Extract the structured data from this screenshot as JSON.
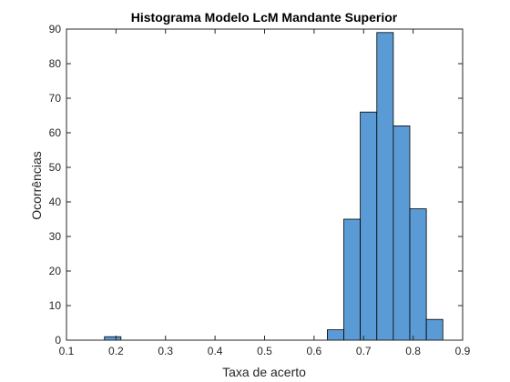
{
  "chart_data": {
    "type": "bar",
    "subtype": "histogram",
    "title": "Histograma Modelo LcM Mandante Superior",
    "xlabel": "Taxa de acerto",
    "ylabel": "Ocorrências",
    "xlim": [
      0.1,
      0.9
    ],
    "ylim": [
      0,
      90
    ],
    "xticks": [
      "0.1",
      "0.2",
      "0.3",
      "0.4",
      "0.5",
      "0.6",
      "0.7",
      "0.8",
      "0.9"
    ],
    "yticks": [
      "0",
      "10",
      "20",
      "30",
      "40",
      "50",
      "60",
      "70",
      "80",
      "90"
    ],
    "bin_width": 0.0333,
    "bins": [
      {
        "x0": 0.1767,
        "x1": 0.21,
        "count": 1
      },
      {
        "x0": 0.6267,
        "x1": 0.66,
        "count": 3
      },
      {
        "x0": 0.66,
        "x1": 0.6933,
        "count": 35
      },
      {
        "x0": 0.6933,
        "x1": 0.7267,
        "count": 66
      },
      {
        "x0": 0.7267,
        "x1": 0.76,
        "count": 89
      },
      {
        "x0": 0.76,
        "x1": 0.7933,
        "count": 62
      },
      {
        "x0": 0.7933,
        "x1": 0.8267,
        "count": 38
      },
      {
        "x0": 0.8267,
        "x1": 0.86,
        "count": 6
      }
    ],
    "grid": false,
    "box": true,
    "colors": {
      "bar_fill": "#5b9bd5",
      "bar_edge": "#000000",
      "axis": "#262626"
    }
  }
}
